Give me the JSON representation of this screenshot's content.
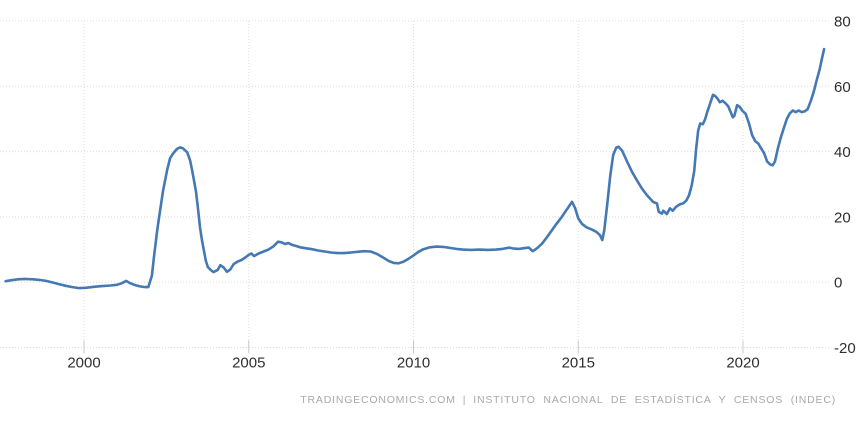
{
  "chart_data": {
    "type": "line",
    "title": "",
    "xlabel": "",
    "ylabel": "",
    "xlim": [
      1997.45,
      2022.64
    ],
    "ylim": [
      -20,
      80
    ],
    "grid": true,
    "legend": "none",
    "x_ticks": [
      {
        "value": 2000,
        "label": "2000"
      },
      {
        "value": 2005,
        "label": "2005"
      },
      {
        "value": 2010,
        "label": "2010"
      },
      {
        "value": 2015,
        "label": "2015"
      },
      {
        "value": 2020,
        "label": "2020"
      }
    ],
    "y_ticks": [
      {
        "value": 80,
        "label": "80"
      },
      {
        "value": 60,
        "label": "60"
      },
      {
        "value": 40,
        "label": "40"
      },
      {
        "value": 20,
        "label": "20"
      },
      {
        "value": 0,
        "label": "0"
      },
      {
        "value": -20,
        "label": "-20"
      }
    ],
    "series": [
      {
        "points": [
          [
            1997.62,
            0.3
          ],
          [
            1997.8,
            0.6
          ],
          [
            1998.0,
            0.9
          ],
          [
            1998.2,
            1.0
          ],
          [
            1998.45,
            0.9
          ],
          [
            1998.65,
            0.7
          ],
          [
            1998.85,
            0.4
          ],
          [
            1999.05,
            -0.1
          ],
          [
            1999.25,
            -0.6
          ],
          [
            1999.45,
            -1.1
          ],
          [
            1999.65,
            -1.5
          ],
          [
            1999.85,
            -1.8
          ],
          [
            2000.05,
            -1.7
          ],
          [
            2000.3,
            -1.4
          ],
          [
            2000.55,
            -1.2
          ],
          [
            2000.8,
            -1.0
          ],
          [
            2001.0,
            -0.8
          ],
          [
            2001.15,
            -0.3
          ],
          [
            2001.28,
            0.4
          ],
          [
            2001.4,
            -0.3
          ],
          [
            2001.55,
            -0.9
          ],
          [
            2001.7,
            -1.3
          ],
          [
            2001.85,
            -1.5
          ],
          [
            2001.95,
            -1.5
          ],
          [
            2002.06,
            2.0
          ],
          [
            2002.12,
            7.6
          ],
          [
            2002.22,
            15.9
          ],
          [
            2002.31,
            22.0
          ],
          [
            2002.4,
            28.1
          ],
          [
            2002.52,
            34.3
          ],
          [
            2002.61,
            37.9
          ],
          [
            2002.7,
            39.4
          ],
          [
            2002.82,
            40.8
          ],
          [
            2002.91,
            41.3
          ],
          [
            2003.0,
            41.0
          ],
          [
            2003.13,
            39.8
          ],
          [
            2003.22,
            37.3
          ],
          [
            2003.28,
            34.3
          ],
          [
            2003.34,
            31.0
          ],
          [
            2003.4,
            27.5
          ],
          [
            2003.46,
            22.5
          ],
          [
            2003.52,
            16.8
          ],
          [
            2003.58,
            12.8
          ],
          [
            2003.64,
            9.5
          ],
          [
            2003.7,
            6.5
          ],
          [
            2003.76,
            4.6
          ],
          [
            2003.85,
            3.7
          ],
          [
            2003.93,
            3.1
          ],
          [
            2004.05,
            3.7
          ],
          [
            2004.14,
            5.2
          ],
          [
            2004.24,
            4.5
          ],
          [
            2004.34,
            3.2
          ],
          [
            2004.44,
            3.9
          ],
          [
            2004.54,
            5.5
          ],
          [
            2004.66,
            6.3
          ],
          [
            2004.78,
            6.8
          ],
          [
            2004.9,
            7.6
          ],
          [
            2005.0,
            8.4
          ],
          [
            2005.08,
            8.8
          ],
          [
            2005.16,
            8.0
          ],
          [
            2005.3,
            8.8
          ],
          [
            2005.45,
            9.4
          ],
          [
            2005.6,
            10.0
          ],
          [
            2005.75,
            11.0
          ],
          [
            2005.89,
            12.4
          ],
          [
            2006.0,
            12.2
          ],
          [
            2006.1,
            11.7
          ],
          [
            2006.2,
            12.0
          ],
          [
            2006.3,
            11.5
          ],
          [
            2006.4,
            11.2
          ],
          [
            2006.56,
            10.7
          ],
          [
            2006.72,
            10.4
          ],
          [
            2006.92,
            10.1
          ],
          [
            2007.1,
            9.7
          ],
          [
            2007.3,
            9.4
          ],
          [
            2007.5,
            9.1
          ],
          [
            2007.7,
            8.9
          ],
          [
            2007.9,
            8.9
          ],
          [
            2008.1,
            9.1
          ],
          [
            2008.3,
            9.3
          ],
          [
            2008.5,
            9.5
          ],
          [
            2008.7,
            9.4
          ],
          [
            2008.9,
            8.6
          ],
          [
            2009.1,
            7.4
          ],
          [
            2009.25,
            6.5
          ],
          [
            2009.4,
            5.9
          ],
          [
            2009.55,
            5.8
          ],
          [
            2009.7,
            6.3
          ],
          [
            2009.85,
            7.2
          ],
          [
            2010.0,
            8.2
          ],
          [
            2010.15,
            9.3
          ],
          [
            2010.3,
            10.1
          ],
          [
            2010.5,
            10.7
          ],
          [
            2010.7,
            10.9
          ],
          [
            2010.9,
            10.8
          ],
          [
            2011.1,
            10.5
          ],
          [
            2011.3,
            10.2
          ],
          [
            2011.5,
            10.0
          ],
          [
            2011.75,
            9.9
          ],
          [
            2012.0,
            10.0
          ],
          [
            2012.25,
            9.9
          ],
          [
            2012.5,
            10.0
          ],
          [
            2012.7,
            10.2
          ],
          [
            2012.9,
            10.6
          ],
          [
            2013.05,
            10.3
          ],
          [
            2013.2,
            10.2
          ],
          [
            2013.35,
            10.4
          ],
          [
            2013.5,
            10.6
          ],
          [
            2013.62,
            9.5
          ],
          [
            2013.75,
            10.4
          ],
          [
            2013.9,
            11.8
          ],
          [
            2014.05,
            13.8
          ],
          [
            2014.2,
            15.9
          ],
          [
            2014.35,
            18.0
          ],
          [
            2014.5,
            20.0
          ],
          [
            2014.65,
            22.2
          ],
          [
            2014.81,
            24.6
          ],
          [
            2014.9,
            22.8
          ],
          [
            2015.0,
            19.5
          ],
          [
            2015.12,
            17.8
          ],
          [
            2015.25,
            16.8
          ],
          [
            2015.4,
            16.2
          ],
          [
            2015.55,
            15.4
          ],
          [
            2015.66,
            14.4
          ],
          [
            2015.73,
            12.9
          ],
          [
            2015.79,
            16.0
          ],
          [
            2015.88,
            24.0
          ],
          [
            2015.97,
            32.5
          ],
          [
            2016.06,
            39.0
          ],
          [
            2016.15,
            41.2
          ],
          [
            2016.22,
            41.5
          ],
          [
            2016.33,
            40.3
          ],
          [
            2016.48,
            37.0
          ],
          [
            2016.63,
            33.8
          ],
          [
            2016.78,
            31.2
          ],
          [
            2016.93,
            28.7
          ],
          [
            2017.09,
            26.6
          ],
          [
            2017.18,
            25.6
          ],
          [
            2017.27,
            24.6
          ],
          [
            2017.39,
            24.1
          ],
          [
            2017.44,
            21.6
          ],
          [
            2017.54,
            21.0
          ],
          [
            2017.58,
            21.9
          ],
          [
            2017.69,
            20.9
          ],
          [
            2017.78,
            22.6
          ],
          [
            2017.87,
            21.9
          ],
          [
            2017.97,
            23.1
          ],
          [
            2018.09,
            23.9
          ],
          [
            2018.18,
            24.1
          ],
          [
            2018.28,
            25.0
          ],
          [
            2018.36,
            26.6
          ],
          [
            2018.44,
            29.5
          ],
          [
            2018.52,
            34.0
          ],
          [
            2018.58,
            41.0
          ],
          [
            2018.64,
            46.5
          ],
          [
            2018.7,
            48.6
          ],
          [
            2018.78,
            48.4
          ],
          [
            2018.85,
            49.9
          ],
          [
            2018.91,
            52.0
          ],
          [
            2019.0,
            54.7
          ],
          [
            2019.09,
            57.4
          ],
          [
            2019.16,
            57.0
          ],
          [
            2019.23,
            56.2
          ],
          [
            2019.3,
            55.1
          ],
          [
            2019.38,
            55.6
          ],
          [
            2019.47,
            54.8
          ],
          [
            2019.55,
            53.9
          ],
          [
            2019.63,
            52.0
          ],
          [
            2019.69,
            50.5
          ],
          [
            2019.74,
            51.0
          ],
          [
            2019.82,
            54.2
          ],
          [
            2019.9,
            53.7
          ],
          [
            2019.98,
            52.5
          ],
          [
            2020.08,
            51.6
          ],
          [
            2020.18,
            48.7
          ],
          [
            2020.28,
            45.0
          ],
          [
            2020.37,
            43.2
          ],
          [
            2020.46,
            42.5
          ],
          [
            2020.55,
            41.0
          ],
          [
            2020.64,
            39.5
          ],
          [
            2020.73,
            37.0
          ],
          [
            2020.82,
            36.1
          ],
          [
            2020.9,
            35.8
          ],
          [
            2020.97,
            37.0
          ],
          [
            2021.06,
            41.0
          ],
          [
            2021.15,
            44.4
          ],
          [
            2021.24,
            47.3
          ],
          [
            2021.33,
            50.0
          ],
          [
            2021.42,
            51.7
          ],
          [
            2021.51,
            52.6
          ],
          [
            2021.6,
            52.1
          ],
          [
            2021.69,
            52.6
          ],
          [
            2021.78,
            52.1
          ],
          [
            2021.87,
            52.3
          ],
          [
            2021.96,
            53.0
          ],
          [
            2022.06,
            55.6
          ],
          [
            2022.15,
            58.5
          ],
          [
            2022.24,
            62.0
          ],
          [
            2022.32,
            65.0
          ],
          [
            2022.39,
            68.3
          ],
          [
            2022.46,
            71.4
          ]
        ]
      }
    ]
  },
  "footer": {
    "source": "TRADINGECONOMICS.COM",
    "separator": "|",
    "attribution": "INSTITUTO NACIONAL DE ESTADÍSTICA Y CENSOS (INDEC)"
  },
  "colors": {
    "line": "#4579b4",
    "grid": "#dcdcdc",
    "tick": "#c8c8c8",
    "axis_label": "#2f2f2f",
    "footer_text": "#a9a9a9",
    "background": "#ffffff"
  }
}
